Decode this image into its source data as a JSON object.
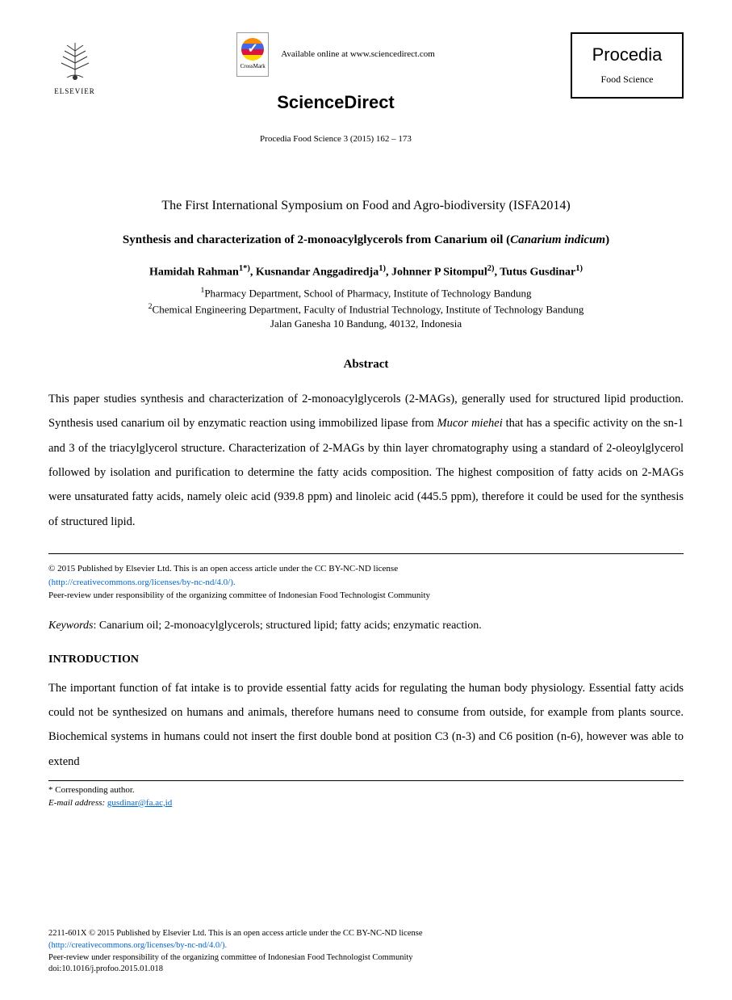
{
  "header": {
    "elsevier_label": "ELSEVIER",
    "crossmark_label": "CrossMark",
    "available_text": "Available online at www.sciencedirect.com",
    "sciencedirect": "ScienceDirect",
    "procedia_title": "Procedia",
    "procedia_subtitle": "Food Science",
    "journal_ref": "Procedia Food Science 3 (2015) 162 – 173"
  },
  "symposium": "The First International Symposium on Food and Agro-biodiversity (ISFA2014)",
  "title_prefix": "Synthesis and characterization of 2-monoacylglycerols from Canarium oil (",
  "title_italic": "Canarium indicum",
  "title_suffix": ")",
  "authors_html": "Hamidah Rahman<sup>1*)</sup>, Kusnandar Anggadiredja<sup>1)</sup>, Johnner P Sitompul<sup>2)</sup>, Tutus Gusdinar<sup>1)</sup>",
  "affiliations": {
    "line1_sup": "1",
    "line1": "Pharmacy Department, School of Pharmacy, Institute of Technology Bandung",
    "line2_sup": "2",
    "line2": "Chemical Engineering Department, Faculty of Industrial Technology, Institute of Technology Bandung",
    "line3": "Jalan Ganesha 10 Bandung, 40132, Indonesia"
  },
  "abstract_heading": "Abstract",
  "abstract_p1a": "This paper studies synthesis and characterization of 2-monoacylglycerols (2-MAGs), generally used for structured lipid production. Synthesis used canarium oil by enzymatic reaction using immobilized lipase from ",
  "abstract_p1_italic": "Mucor miehei",
  "abstract_p1b": " that has a specific activity on the sn-1 and 3 of the triacylglycerol structure. Characterization of 2-MAGs by thin layer chromatography using a standard of 2-oleoylglycerol followed by isolation and purification to determine the fatty acids composition. The highest composition of fatty acids on 2-MAGs were unsaturated fatty acids, namely oleic acid (939.8 ppm) and linoleic acid (445.5 ppm), therefore it could be used for the synthesis of structured lipid.",
  "copyright": {
    "line1": "© 2015 Published by Elsevier Ltd. This is an open access article under the CC BY-NC-ND license",
    "license_url": "(http://creativecommons.org/licenses/by-nc-nd/4.0/).",
    "peer_review": "Peer-review under responsibility of the organizing committee of Indonesian Food Technologist Community"
  },
  "keywords_label": "Keywords",
  "keywords": ": Canarium oil; 2-monoacylglycerols; structured lipid; fatty acids; enzymatic reaction.",
  "introduction_heading": "INTRODUCTION",
  "introduction_text": "The important function of fat intake is to provide essential fatty acids for regulating the human body physiology. Essential fatty acids could not be synthesized on humans and animals, therefore humans need to consume from outside, for example from plants source. Biochemical systems in humans could not insert the first double bond at position C3 (n-3) and C6 position (n-6), however was able to extend",
  "corresponding": {
    "label": "* Corresponding author.",
    "email_label": "E-mail address:",
    "email": "gusdinar@fa.ac,id"
  },
  "footer": {
    "issn": "2211-601X © 2015 Published by Elsevier Ltd. This is an open access article under the CC BY-NC-ND license",
    "license_url": "(http://creativecommons.org/licenses/by-nc-nd/4.0/).",
    "peer_review": "Peer-review under responsibility of the organizing committee of Indonesian Food Technologist Community",
    "doi": "doi:10.1016/j.profoo.2015.01.018"
  },
  "colors": {
    "text": "#000000",
    "link": "#0066cc",
    "background": "#ffffff",
    "border": "#000000"
  }
}
